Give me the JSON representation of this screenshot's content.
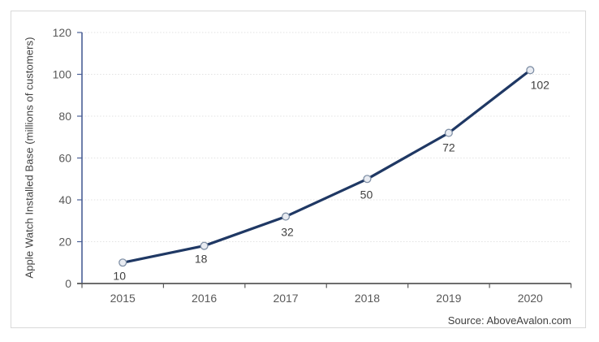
{
  "chart_data": {
    "type": "line",
    "title": "",
    "categories": [
      "2015",
      "2016",
      "2017",
      "2018",
      "2019",
      "2020"
    ],
    "values": [
      10,
      18,
      32,
      50,
      72,
      102
    ],
    "data_labels": [
      "10",
      "18",
      "32",
      "50",
      "72",
      "102"
    ],
    "xlabel": "",
    "ylabel": "Apple Watch Installed Base (millions of customers)",
    "ylim": [
      0,
      120
    ],
    "yticks": [
      0,
      20,
      40,
      60,
      80,
      100,
      120
    ],
    "grid": "horizontal-dotted",
    "legend": "none",
    "colors": {
      "line": "#1f3864",
      "marker_fill": "#e9ecf2",
      "marker_stroke": "#8090a6",
      "y_axis": "#4a5f96",
      "x_axis": "#595959",
      "tick_label": "#595959",
      "data_label": "#404040",
      "gridline": "#e2e2e2",
      "card_border": "#d9d9d9"
    }
  },
  "footer": {
    "source_label": "Source: AboveAvalon.com"
  }
}
